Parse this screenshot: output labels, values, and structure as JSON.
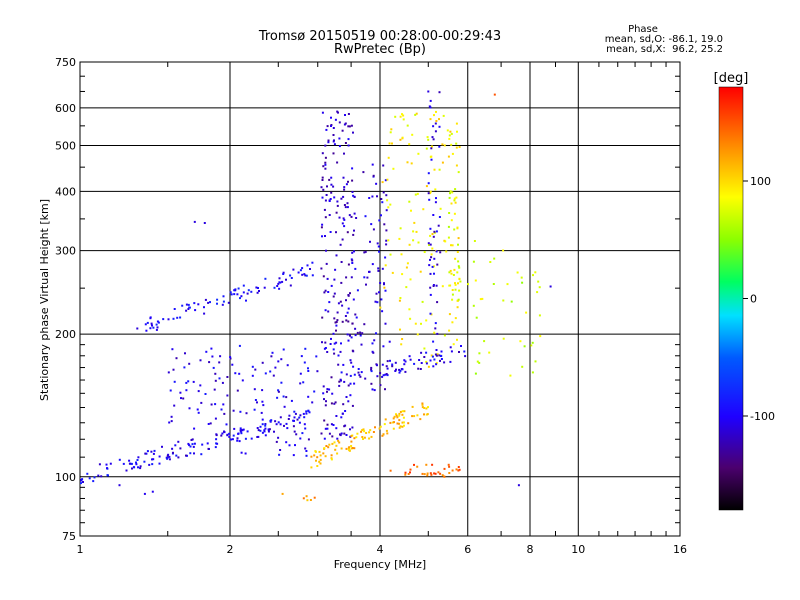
{
  "title": {
    "line1": "Tromsø 20150519 00:28:00-00:29:43",
    "line2": "RwPretec (Bp)"
  },
  "phase_box": {
    "heading": "Phase",
    "line_o": "mean, sd,O: -86.1, 19.0",
    "line_x": "mean, sd,X:  96.2, 25.2"
  },
  "colorbar": {
    "unit_label": "[deg]",
    "ticks": [
      {
        "value": 100,
        "label": "100"
      },
      {
        "value": 0,
        "label": "0"
      },
      {
        "value": -100,
        "label": "-100"
      }
    ],
    "range": [
      -180,
      180
    ]
  },
  "chart_data": {
    "type": "scatter",
    "title": "Tromsø 20150519 00:28:00-00:29:43",
    "subtitle": "RwPretec (Bp)",
    "xlabel": "Frequency [MHz]",
    "ylabel": "Stationary phase Virtual Height [km]",
    "x_scale": "log2",
    "y_scale": "log",
    "xlim": [
      1,
      16
    ],
    "ylim": [
      75,
      750
    ],
    "x_ticks": [
      {
        "value": 1,
        "label": "1"
      },
      {
        "value": 2,
        "label": "2"
      },
      {
        "value": 4,
        "label": "4"
      },
      {
        "value": 6,
        "label": "6"
      },
      {
        "value": 8,
        "label": "8"
      },
      {
        "value": 10,
        "label": "10"
      },
      {
        "value": 16,
        "label": "16"
      }
    ],
    "y_ticks": [
      {
        "value": 75,
        "label": "75"
      },
      {
        "value": 100,
        "label": "100"
      },
      {
        "value": 200,
        "label": "200"
      },
      {
        "value": 300,
        "label": "300"
      },
      {
        "value": 400,
        "label": "400"
      },
      {
        "value": 500,
        "label": "500"
      },
      {
        "value": 600,
        "label": "600"
      },
      {
        "value": 750,
        "label": "750"
      }
    ],
    "grid_x": [
      2,
      4,
      6,
      8,
      10
    ],
    "grid_y": [
      100,
      200,
      300,
      400,
      500,
      600
    ],
    "color_encoding": "phase [deg]",
    "point_groups": [
      {
        "name": "E trace low",
        "x_range": [
          1.0,
          2.9
        ],
        "y_range": [
          100,
          135
        ],
        "phase": -100,
        "count": 140
      },
      {
        "name": "E spread",
        "x_range": [
          1.5,
          3.0
        ],
        "y_range": [
          110,
          190
        ],
        "phase": -105,
        "count": 150
      },
      {
        "name": "F1 ramp",
        "x_range": [
          1.3,
          3.0
        ],
        "y_range": [
          205,
          275
        ],
        "phase": -95,
        "count": 90
      },
      {
        "name": "cusp column",
        "x_range": [
          3.05,
          3.55
        ],
        "y_range": [
          120,
          600
        ],
        "phase": -115,
        "count": 220
      },
      {
        "name": "mid column O",
        "x_range": [
          3.5,
          4.2
        ],
        "y_range": [
          150,
          460
        ],
        "phase": -110,
        "count": 90
      },
      {
        "name": "X low trace",
        "x_range": [
          2.9,
          5.0
        ],
        "y_range": [
          108,
          140
        ],
        "phase": 110,
        "count": 110
      },
      {
        "name": "X high band",
        "x_range": [
          4.0,
          5.8
        ],
        "y_range": [
          170,
          600
        ],
        "phase": 90,
        "count": 140
      },
      {
        "name": "F2 trace O",
        "x_range": [
          3.3,
          6.0
        ],
        "y_range": [
          160,
          185
        ],
        "phase": -105,
        "count": 70
      },
      {
        "name": "column 5.6",
        "x_range": [
          5.5,
          5.8
        ],
        "y_range": [
          230,
          410
        ],
        "phase": 80,
        "count": 40
      },
      {
        "name": "column 5.2",
        "x_range": [
          5.0,
          5.3
        ],
        "y_range": [
          180,
          650
        ],
        "phase": -110,
        "count": 50
      },
      {
        "name": "high freq scatter",
        "x_range": [
          6.0,
          8.5
        ],
        "y_range": [
          160,
          320
        ],
        "phase": 70,
        "count": 40
      },
      {
        "name": "blob at 100km",
        "x_range": [
          4.4,
          5.8
        ],
        "y_range": [
          100,
          106
        ],
        "phase": 145,
        "count": 30
      },
      {
        "name": "isolated",
        "x_range": [
          2.5,
          3.0
        ],
        "y_range": [
          88,
          92
        ],
        "phase": 120,
        "count": 4
      }
    ],
    "points_approx": [
      {
        "x": 1.7,
        "y": 345,
        "phase": -110
      },
      {
        "x": 1.78,
        "y": 343,
        "phase": -110
      },
      {
        "x": 1.35,
        "y": 92,
        "phase": -105
      },
      {
        "x": 1.4,
        "y": 93,
        "phase": -105
      },
      {
        "x": 1.2,
        "y": 96,
        "phase": -110
      },
      {
        "x": 6.8,
        "y": 640,
        "phase": 150
      },
      {
        "x": 5.0,
        "y": 650,
        "phase": -110
      },
      {
        "x": 8.8,
        "y": 252,
        "phase": -110
      },
      {
        "x": 7.6,
        "y": 96,
        "phase": -110
      },
      {
        "x": 2.55,
        "y": 92,
        "phase": 120
      },
      {
        "x": 2.85,
        "y": 91,
        "phase": 120
      },
      {
        "x": 4.2,
        "y": 103,
        "phase": 140
      },
      {
        "x": 4.5,
        "y": 102,
        "phase": 160
      },
      {
        "x": 8.2,
        "y": 270,
        "phase": 80
      }
    ]
  }
}
